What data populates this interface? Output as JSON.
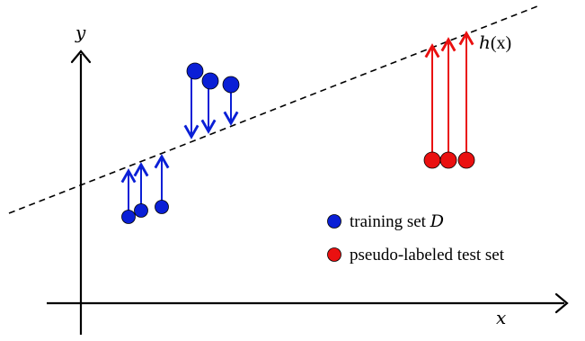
{
  "axes": {
    "x_label": "x",
    "y_label": "y"
  },
  "hypothesis": {
    "label_fn": "h",
    "label_arg": "(x)"
  },
  "legend": {
    "training": {
      "label": "training set ",
      "symbol": "D",
      "color": "#0a1fd6"
    },
    "pseudo": {
      "label": "pseudo-labeled test set",
      "color": "#ea1010"
    }
  },
  "colors": {
    "blue": "#0a1fd6",
    "red": "#ea1010",
    "line": "#000000"
  }
}
